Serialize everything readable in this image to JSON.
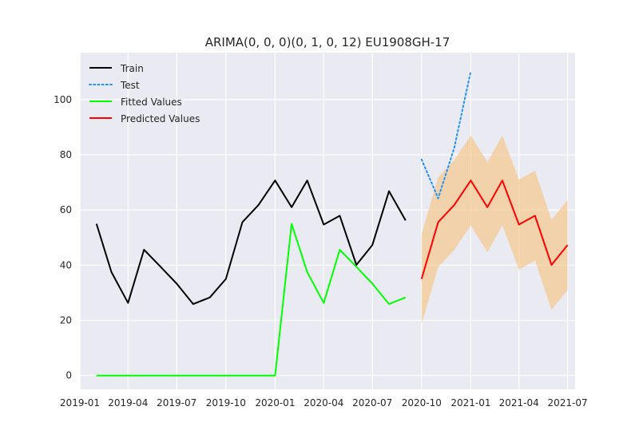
{
  "chart_data": {
    "type": "line",
    "title": "ARIMA(0, 0, 0)(0, 1, 0, 12) EU1908GH-17",
    "xlabel": "",
    "ylabel": "",
    "xlim": [
      "2019-01-01",
      "2021-07-15"
    ],
    "ylim": [
      -5,
      117
    ],
    "grid": true,
    "legend_position": "top-left",
    "x_ticks": [
      "2019-01",
      "2019-04",
      "2019-07",
      "2019-10",
      "2020-01",
      "2020-04",
      "2020-07",
      "2020-10",
      "2021-01",
      "2021-04",
      "2021-07"
    ],
    "y_ticks": [
      0,
      20,
      40,
      60,
      80,
      100
    ],
    "series": [
      {
        "name": "Train",
        "color": "#000000",
        "style": "solid",
        "x": [
          "2019-02",
          "2019-03",
          "2019-04",
          "2019-05",
          "2019-06",
          "2019-07",
          "2019-08",
          "2019-09",
          "2019-10",
          "2019-11",
          "2019-12",
          "2020-01",
          "2020-02",
          "2020-03",
          "2020-04",
          "2020-05",
          "2020-06",
          "2020-07",
          "2020-08",
          "2020-09"
        ],
        "values": [
          55,
          37.5,
          26.3,
          45.6,
          39.4,
          33.3,
          25.9,
          28.3,
          35,
          55.6,
          61.8,
          70.7,
          61,
          70.7,
          54.7,
          57.9,
          40.1,
          47.3,
          66.8,
          56.2
        ]
      },
      {
        "name": "Test",
        "color": "#1e90ff",
        "style": "dotted",
        "x": [
          "2020-10",
          "2020-11",
          "2020-12",
          "2021-01"
        ],
        "values": [
          78.3,
          64.2,
          82.5,
          110.3
        ]
      },
      {
        "name": "Fitted Values",
        "color": "#00ff00",
        "style": "solid",
        "x": [
          "2019-02",
          "2019-03",
          "2019-04",
          "2019-05",
          "2019-06",
          "2019-07",
          "2019-08",
          "2019-09",
          "2019-10",
          "2019-11",
          "2019-12",
          "2020-01",
          "2020-02",
          "2020-03",
          "2020-04",
          "2020-05",
          "2020-06",
          "2020-07",
          "2020-08",
          "2020-09"
        ],
        "values": [
          0,
          0,
          0,
          0,
          0,
          0,
          0,
          0,
          0,
          0,
          0,
          0,
          55,
          37.5,
          26.3,
          45.6,
          39.4,
          33.3,
          25.9,
          28.3
        ]
      },
      {
        "name": "Predicted Values",
        "color": "#ff0000",
        "style": "solid",
        "x": [
          "2020-10",
          "2020-11",
          "2020-12",
          "2021-01",
          "2021-02",
          "2021-03",
          "2021-04",
          "2021-05",
          "2021-06",
          "2021-07"
        ],
        "values": [
          35,
          55.6,
          61.8,
          70.7,
          61,
          70.7,
          54.7,
          57.9,
          40.1,
          47.3
        ]
      }
    ],
    "confidence_band": {
      "color": "#f5c27a",
      "x": [
        "2020-10",
        "2020-11",
        "2020-12",
        "2021-01",
        "2021-02",
        "2021-03",
        "2021-04",
        "2021-05",
        "2021-06",
        "2021-07"
      ],
      "lower": [
        18.7,
        39.3,
        45.5,
        54.4,
        44.7,
        54.4,
        38.4,
        41.6,
        23.8,
        31
      ],
      "upper": [
        51.3,
        71.9,
        78.1,
        87,
        77.3,
        87,
        71,
        74.2,
        56.4,
        63.6
      ]
    }
  }
}
